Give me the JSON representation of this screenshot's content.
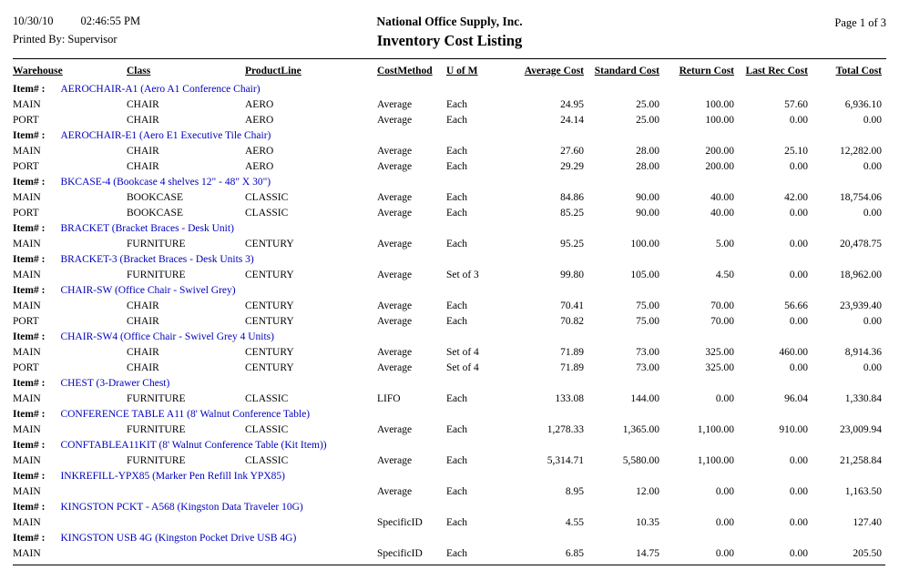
{
  "header": {
    "date": "10/30/10",
    "time": "02:46:55 PM",
    "printed_by": "Printed By: Supervisor",
    "company": "National Office Supply, Inc.",
    "title": "Inventory Cost Listing",
    "page": "Page 1 of 3"
  },
  "table": {
    "item_label": "Item# :",
    "columns": [
      "Warehouse",
      "Class",
      "ProductLine",
      "CostMethod",
      "U of M",
      "Average Cost",
      "Standard Cost",
      "Return Cost",
      "Last Rec Cost",
      "Total Cost"
    ],
    "groups": [
      {
        "item": "AEROCHAIR-A1 (Aero A1 Conference Chair)",
        "rows": [
          {
            "warehouse": "MAIN",
            "class": "CHAIR",
            "product_line": "AERO",
            "cost_method": "Average",
            "uom": "Each",
            "average_cost": "24.95",
            "standard_cost": "25.00",
            "return_cost": "100.00",
            "last_rec_cost": "57.60",
            "total_cost": "6,936.10"
          },
          {
            "warehouse": "PORT",
            "class": "CHAIR",
            "product_line": "AERO",
            "cost_method": "Average",
            "uom": "Each",
            "average_cost": "24.14",
            "standard_cost": "25.00",
            "return_cost": "100.00",
            "last_rec_cost": "0.00",
            "total_cost": "0.00"
          }
        ]
      },
      {
        "item": "AEROCHAIR-E1 (Aero E1 Executive Tile Chair)",
        "rows": [
          {
            "warehouse": "MAIN",
            "class": "CHAIR",
            "product_line": "AERO",
            "cost_method": "Average",
            "uom": "Each",
            "average_cost": "27.60",
            "standard_cost": "28.00",
            "return_cost": "200.00",
            "last_rec_cost": "25.10",
            "total_cost": "12,282.00"
          },
          {
            "warehouse": "PORT",
            "class": "CHAIR",
            "product_line": "AERO",
            "cost_method": "Average",
            "uom": "Each",
            "average_cost": "29.29",
            "standard_cost": "28.00",
            "return_cost": "200.00",
            "last_rec_cost": "0.00",
            "total_cost": "0.00"
          }
        ]
      },
      {
        "item": "BKCASE-4 (Bookcase 4 shelves 12\" - 48\" X 30\")",
        "rows": [
          {
            "warehouse": "MAIN",
            "class": "BOOKCASE",
            "product_line": "CLASSIC",
            "cost_method": "Average",
            "uom": "Each",
            "average_cost": "84.86",
            "standard_cost": "90.00",
            "return_cost": "40.00",
            "last_rec_cost": "42.00",
            "total_cost": "18,754.06"
          },
          {
            "warehouse": "PORT",
            "class": "BOOKCASE",
            "product_line": "CLASSIC",
            "cost_method": "Average",
            "uom": "Each",
            "average_cost": "85.25",
            "standard_cost": "90.00",
            "return_cost": "40.00",
            "last_rec_cost": "0.00",
            "total_cost": "0.00"
          }
        ]
      },
      {
        "item": "BRACKET (Bracket Braces - Desk Unit)",
        "rows": [
          {
            "warehouse": "MAIN",
            "class": "FURNITURE",
            "product_line": "CENTURY",
            "cost_method": "Average",
            "uom": "Each",
            "average_cost": "95.25",
            "standard_cost": "100.00",
            "return_cost": "5.00",
            "last_rec_cost": "0.00",
            "total_cost": "20,478.75"
          }
        ]
      },
      {
        "item": "BRACKET-3 (Bracket Braces - Desk Units 3)",
        "rows": [
          {
            "warehouse": "MAIN",
            "class": "FURNITURE",
            "product_line": "CENTURY",
            "cost_method": "Average",
            "uom": "Set of 3",
            "average_cost": "99.80",
            "standard_cost": "105.00",
            "return_cost": "4.50",
            "last_rec_cost": "0.00",
            "total_cost": "18,962.00"
          }
        ]
      },
      {
        "item": "CHAIR-SW (Office Chair - Swivel Grey)",
        "rows": [
          {
            "warehouse": "MAIN",
            "class": "CHAIR",
            "product_line": "CENTURY",
            "cost_method": "Average",
            "uom": "Each",
            "average_cost": "70.41",
            "standard_cost": "75.00",
            "return_cost": "70.00",
            "last_rec_cost": "56.66",
            "total_cost": "23,939.40"
          },
          {
            "warehouse": "PORT",
            "class": "CHAIR",
            "product_line": "CENTURY",
            "cost_method": "Average",
            "uom": "Each",
            "average_cost": "70.82",
            "standard_cost": "75.00",
            "return_cost": "70.00",
            "last_rec_cost": "0.00",
            "total_cost": "0.00"
          }
        ]
      },
      {
        "item": "CHAIR-SW4 (Office Chair - Swivel Grey 4 Units)",
        "rows": [
          {
            "warehouse": "MAIN",
            "class": "CHAIR",
            "product_line": "CENTURY",
            "cost_method": "Average",
            "uom": "Set of 4",
            "average_cost": "71.89",
            "standard_cost": "73.00",
            "return_cost": "325.00",
            "last_rec_cost": "460.00",
            "total_cost": "8,914.36"
          },
          {
            "warehouse": "PORT",
            "class": "CHAIR",
            "product_line": "CENTURY",
            "cost_method": "Average",
            "uom": "Set of 4",
            "average_cost": "71.89",
            "standard_cost": "73.00",
            "return_cost": "325.00",
            "last_rec_cost": "0.00",
            "total_cost": "0.00"
          }
        ]
      },
      {
        "item": "CHEST (3-Drawer Chest)",
        "rows": [
          {
            "warehouse": "MAIN",
            "class": "FURNITURE",
            "product_line": "CLASSIC",
            "cost_method": "LIFO",
            "uom": "Each",
            "average_cost": "133.08",
            "standard_cost": "144.00",
            "return_cost": "0.00",
            "last_rec_cost": "96.04",
            "total_cost": "1,330.84"
          }
        ]
      },
      {
        "item": "CONFERENCE TABLE A11 (8' Walnut Conference Table)",
        "rows": [
          {
            "warehouse": "MAIN",
            "class": "FURNITURE",
            "product_line": "CLASSIC",
            "cost_method": "Average",
            "uom": "Each",
            "average_cost": "1,278.33",
            "standard_cost": "1,365.00",
            "return_cost": "1,100.00",
            "last_rec_cost": "910.00",
            "total_cost": "23,009.94"
          }
        ]
      },
      {
        "item": "CONFTABLEA11KIT (8' Walnut Conference Table (Kit Item))",
        "rows": [
          {
            "warehouse": "MAIN",
            "class": "FURNITURE",
            "product_line": "CLASSIC",
            "cost_method": "Average",
            "uom": "Each",
            "average_cost": "5,314.71",
            "standard_cost": "5,580.00",
            "return_cost": "1,100.00",
            "last_rec_cost": "0.00",
            "total_cost": "21,258.84"
          }
        ]
      },
      {
        "item": "INKREFILL-YPX85 (Marker Pen Refill Ink YPX85)",
        "rows": [
          {
            "warehouse": "MAIN",
            "class": "",
            "product_line": "",
            "cost_method": "Average",
            "uom": "Each",
            "average_cost": "8.95",
            "standard_cost": "12.00",
            "return_cost": "0.00",
            "last_rec_cost": "0.00",
            "total_cost": "1,163.50"
          }
        ]
      },
      {
        "item": "KINGSTON PCKT - A568 (Kingston Data Traveler 10G)",
        "rows": [
          {
            "warehouse": "MAIN",
            "class": "",
            "product_line": "",
            "cost_method": "SpecificID",
            "uom": "Each",
            "average_cost": "4.55",
            "standard_cost": "10.35",
            "return_cost": "0.00",
            "last_rec_cost": "0.00",
            "total_cost": "127.40"
          }
        ]
      },
      {
        "item": "KINGSTON USB 4G (Kingston Pocket Drive USB 4G)",
        "rows": [
          {
            "warehouse": "MAIN",
            "class": "",
            "product_line": "",
            "cost_method": "SpecificID",
            "uom": "Each",
            "average_cost": "6.85",
            "standard_cost": "14.75",
            "return_cost": "0.00",
            "last_rec_cost": "0.00",
            "total_cost": "205.50"
          }
        ]
      }
    ]
  }
}
